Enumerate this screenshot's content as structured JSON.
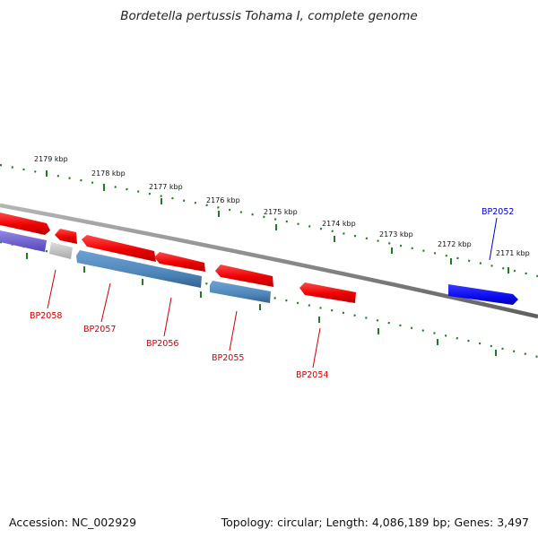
{
  "title": "Bordetella pertussis Tohama I, complete genome",
  "footer": {
    "accession": "Accession: NC_002929",
    "summary": "Topology: circular; Length: 4,086,189 bp; Genes: 3,497"
  },
  "colors": {
    "forward_gene": "#ff1a1a",
    "reverse_gene": "#4f87bb",
    "highlight_gene": "#0b0bf0",
    "other_gene": "#7466d4",
    "pseudo_gene": "#c6c6c6",
    "tick": "#1e7d1e",
    "backbone": "#8c8c8c",
    "label_red": "#cc0000",
    "label_blue": "#0000cc"
  },
  "kbp_labels": [
    "2179 kbp",
    "2178 kbp",
    "2177 kbp",
    "2176 kbp",
    "2175 kbp",
    "2174 kbp",
    "2173 kbp",
    "2172 kbp",
    "2171 kbp"
  ],
  "gene_labels": [
    {
      "id": "bp2058",
      "text": "BP2058"
    },
    {
      "id": "bp2057",
      "text": "BP2057"
    },
    {
      "id": "bp2056",
      "text": "BP2056"
    },
    {
      "id": "bp2055",
      "text": "BP2055"
    },
    {
      "id": "bp2054",
      "text": "BP2054"
    },
    {
      "id": "bp2052",
      "text": "BP2052"
    }
  ]
}
